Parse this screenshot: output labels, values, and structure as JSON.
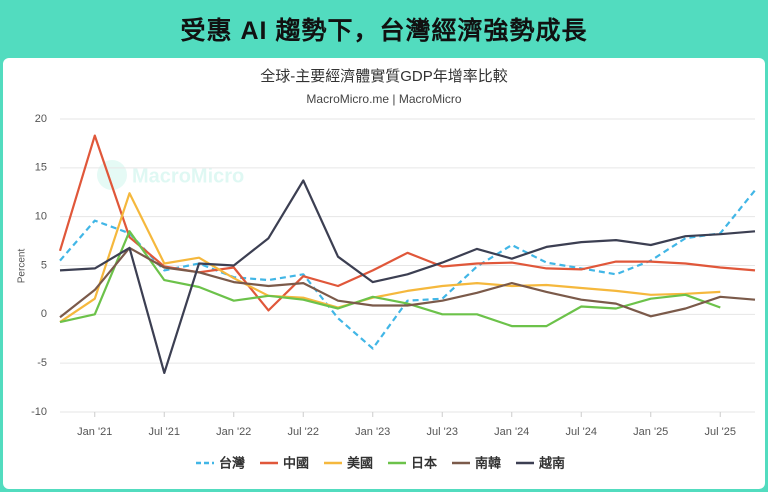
{
  "header": {
    "title": "受惠 AI 趨勢下，台灣經濟強勢成長"
  },
  "chart_data": {
    "type": "line",
    "title": "全球-主要經濟體實質GDP年增率比較",
    "subtitle": "MacroMicro.me | MacroMicro",
    "watermark": "MacroMicro",
    "y_label": "Percent",
    "x": [
      "2020-10",
      "2021-01",
      "2021-04",
      "2021-07",
      "2021-10",
      "2022-01",
      "2022-04",
      "2022-07",
      "2022-10",
      "2023-01",
      "2023-04",
      "2023-07",
      "2023-10",
      "2024-01",
      "2024-04",
      "2024-07",
      "2024-10",
      "2025-01",
      "2025-04",
      "2025-07",
      "2025-10"
    ],
    "xlim": [
      "2020-10",
      "2025-10"
    ],
    "xticks": [
      {
        "value": "2021-01",
        "label": "Jan '21"
      },
      {
        "value": "2021-07",
        "label": "Jul '21"
      },
      {
        "value": "2022-01",
        "label": "Jan '22"
      },
      {
        "value": "2022-07",
        "label": "Jul '22"
      },
      {
        "value": "2023-01",
        "label": "Jan '23"
      },
      {
        "value": "2023-07",
        "label": "Jul '23"
      },
      {
        "value": "2024-01",
        "label": "Jan '24"
      },
      {
        "value": "2024-07",
        "label": "Jul '24"
      },
      {
        "value": "2025-01",
        "label": "Jan '25"
      },
      {
        "value": "2025-07",
        "label": "Jul '25"
      }
    ],
    "ylim": [
      -10,
      20
    ],
    "yticks": [
      -10,
      -5,
      0,
      5,
      10,
      15,
      20
    ],
    "grid": true,
    "legend": "bottom",
    "series": [
      {
        "name": "台灣",
        "color": "#41b6e6",
        "dashed": true,
        "values": [
          5.5,
          9.6,
          8.3,
          4.5,
          5.2,
          3.8,
          3.5,
          4.1,
          -0.4,
          -3.5,
          1.4,
          1.6,
          4.9,
          7.1,
          5.3,
          4.7,
          4.1,
          5.5,
          7.8,
          8.3,
          12.7
        ]
      },
      {
        "name": "中國",
        "color": "#e0573a",
        "values": [
          6.5,
          18.3,
          7.9,
          4.9,
          4.3,
          4.8,
          0.4,
          3.9,
          2.9,
          4.5,
          6.3,
          4.9,
          5.2,
          5.3,
          4.7,
          4.6,
          5.4,
          5.4,
          5.2,
          4.8,
          4.5
        ]
      },
      {
        "name": "美國",
        "color": "#f5b83d",
        "values": [
          -0.8,
          1.6,
          12.4,
          5.2,
          5.8,
          3.7,
          1.9,
          1.7,
          0.7,
          1.7,
          2.4,
          2.9,
          3.2,
          2.9,
          3.0,
          2.7,
          2.4,
          2.0,
          2.1,
          2.3,
          null
        ]
      },
      {
        "name": "日本",
        "color": "#6cc24a",
        "values": [
          -0.8,
          0.0,
          8.5,
          3.5,
          2.8,
          1.4,
          1.9,
          1.5,
          0.6,
          1.8,
          1.1,
          0.0,
          0.0,
          -1.2,
          -1.2,
          0.8,
          0.6,
          1.6,
          2.0,
          0.7,
          null
        ]
      },
      {
        "name": "南韓",
        "color": "#7b5a4a",
        "values": [
          -0.3,
          2.5,
          6.8,
          4.8,
          4.3,
          3.3,
          2.9,
          3.2,
          1.4,
          0.9,
          0.9,
          1.4,
          2.2,
          3.2,
          2.3,
          1.5,
          1.1,
          -0.2,
          0.6,
          1.8,
          1.5
        ]
      },
      {
        "name": "越南",
        "color": "#3c3f52",
        "values": [
          4.5,
          4.7,
          6.8,
          -6.0,
          5.2,
          5.0,
          7.8,
          13.7,
          5.9,
          3.3,
          4.1,
          5.3,
          6.7,
          5.7,
          6.9,
          7.4,
          7.6,
          7.1,
          8.0,
          8.2,
          8.5
        ]
      }
    ]
  }
}
